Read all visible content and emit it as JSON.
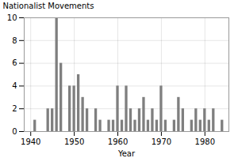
{
  "chart_data": {
    "type": "bar",
    "xlabel": "Year",
    "ylabel": "Nationalist Movements",
    "x": [
      1940,
      1941,
      1942,
      1943,
      1944,
      1945,
      1946,
      1947,
      1948,
      1949,
      1950,
      1951,
      1952,
      1953,
      1954,
      1955,
      1956,
      1957,
      1958,
      1959,
      1960,
      1961,
      1962,
      1963,
      1964,
      1965,
      1966,
      1967,
      1968,
      1969,
      1970,
      1971,
      1972,
      1973,
      1974,
      1975,
      1976,
      1977,
      1978,
      1979,
      1980,
      1981,
      1982,
      1983,
      1984
    ],
    "values": [
      0,
      1,
      0,
      0,
      2,
      2,
      10,
      6,
      0,
      4,
      4,
      5,
      3,
      2,
      0,
      2,
      1,
      0,
      1,
      1,
      4,
      1,
      4,
      2,
      1,
      2,
      3,
      1,
      2,
      1,
      4,
      1,
      0,
      1,
      3,
      2,
      0,
      1,
      2,
      1,
      2,
      1,
      2,
      0,
      1
    ],
    "color": "#7f7f7f",
    "xlim": [
      1938.5,
      1985.5
    ],
    "ylim": [
      0,
      10
    ],
    "xticks": [
      1940,
      1950,
      1960,
      1970,
      1980
    ],
    "yticks": [
      0,
      2,
      4,
      6,
      8,
      10
    ],
    "grid": true
  }
}
